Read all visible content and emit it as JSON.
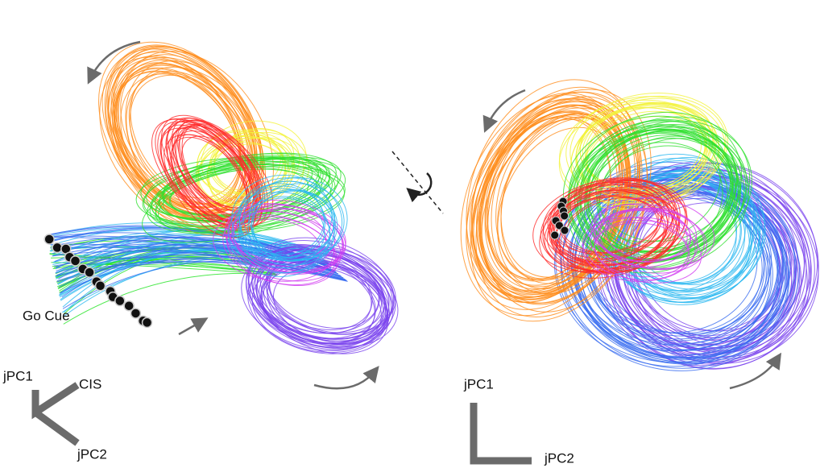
{
  "labels": {
    "go_cue": "Go Cue",
    "left_axes": {
      "jpc1": "jPC1",
      "cis": "CIS",
      "jpc2": "jPC2"
    },
    "right_axes": {
      "jpc1": "jPC1",
      "jpc2": "jPC2"
    }
  }
}
